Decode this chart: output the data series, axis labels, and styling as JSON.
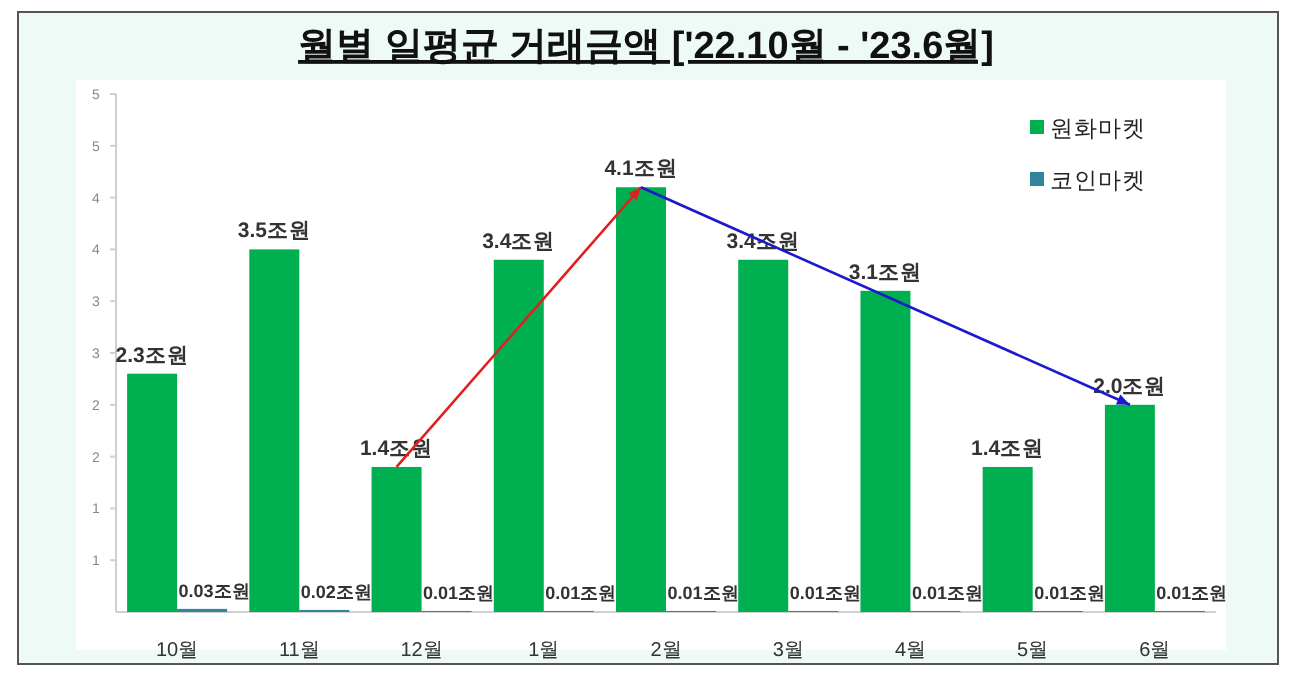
{
  "chart_data": {
    "type": "bar",
    "title": "월별 일평균 거래금액 ['22.10월 - '23.6월]",
    "categories": [
      "10월",
      "11월",
      "12월",
      "1월",
      "2월",
      "3월",
      "4월",
      "5월",
      "6월"
    ],
    "series": [
      {
        "name": "원화마켓",
        "color": "#00b050",
        "values": [
          2.3,
          3.5,
          1.4,
          3.4,
          4.1,
          3.4,
          3.1,
          1.4,
          2.0
        ],
        "value_labels": [
          "2.3조원",
          "3.5조원",
          "1.4조원",
          "3.4조원",
          "4.1조원",
          "3.4조원",
          "3.1조원",
          "1.4조원",
          "2.0조원"
        ]
      },
      {
        "name": "코인마켓",
        "color": "#31849b",
        "values": [
          0.03,
          0.02,
          0.01,
          0.01,
          0.01,
          0.01,
          0.01,
          0.01,
          0.01
        ],
        "value_labels": [
          "0.03조원",
          "0.02조원",
          "0.01조원",
          "0.01조원",
          "0.01조원",
          "0.01조원",
          "0.01조원",
          "0.01조원",
          "0.01조원"
        ]
      }
    ],
    "ylim": [
      0,
      5
    ],
    "yticks": [
      {
        "value": 0.5,
        "label": "1"
      },
      {
        "value": 1,
        "label": "1"
      },
      {
        "value": 1.5,
        "label": "2"
      },
      {
        "value": 2,
        "label": "2"
      },
      {
        "value": 2.5,
        "label": "3"
      },
      {
        "value": 3,
        "label": "3"
      },
      {
        "value": 3.5,
        "label": "4"
      },
      {
        "value": 4,
        "label": "4"
      },
      {
        "value": 4.5,
        "label": "5"
      },
      5
    ],
    "grid": false,
    "legend": "top right"
  }
}
